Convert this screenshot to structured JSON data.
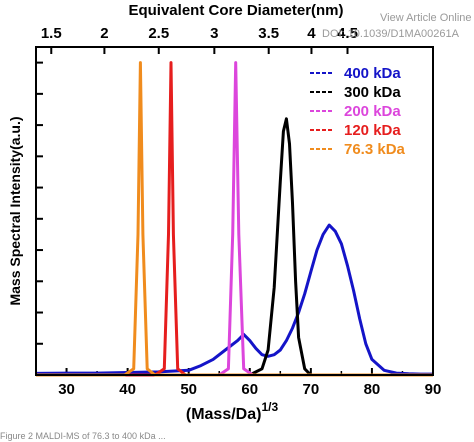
{
  "watermark": {
    "line1": "View Article Online",
    "line2": "DOI: 10.1039/D1MA00261A"
  },
  "caption_fragment": "Figure 2 MALDI-MS of 76.3 to 400 kDa ...",
  "chart_data": {
    "type": "line",
    "title": "",
    "xlabel": "(Mass/Da)",
    "xlabel_superscript": "1/3",
    "ylabel": "Mass Spectral Intensity(a.u.)",
    "top_axis_label": "Equivalent Core Diameter(nm)",
    "xlim": [
      25,
      90
    ],
    "ylim": [
      0,
      1.05
    ],
    "x_ticks": [
      30,
      40,
      50,
      60,
      70,
      80,
      90
    ],
    "x_tick_labels": [
      "30",
      "40",
      "50",
      "60",
      "70",
      "80",
      "90"
    ],
    "top_ticks": [
      {
        "label": "1.5",
        "x": 27.5
      },
      {
        "label": "2",
        "x": 36.2
      },
      {
        "label": "2.5",
        "x": 45.1
      },
      {
        "label": "3",
        "x": 54.2
      },
      {
        "label": "3.5",
        "x": 63.1
      },
      {
        "label": "4",
        "x": 70.1
      },
      {
        "label": "4.5",
        "x": 76.0
      }
    ],
    "legend_position": "top-right",
    "series": [
      {
        "name": "400 kDa",
        "color": "#1414c8",
        "x": [
          25,
          30,
          35,
          40,
          45,
          50,
          52,
          54,
          56,
          58,
          59,
          60,
          61,
          62,
          63,
          64,
          65,
          66,
          67,
          68,
          69,
          70,
          71,
          72,
          73,
          74,
          75,
          76,
          77,
          78,
          79,
          80,
          82,
          84,
          86,
          88,
          90
        ],
        "y": [
          0.005,
          0.006,
          0.006,
          0.008,
          0.01,
          0.015,
          0.03,
          0.05,
          0.08,
          0.11,
          0.13,
          0.11,
          0.085,
          0.065,
          0.06,
          0.065,
          0.08,
          0.11,
          0.15,
          0.2,
          0.26,
          0.33,
          0.4,
          0.45,
          0.48,
          0.46,
          0.42,
          0.35,
          0.27,
          0.18,
          0.1,
          0.05,
          0.015,
          0.006,
          0.004,
          0.003,
          0.003
        ]
      },
      {
        "name": "300 kDa",
        "color": "#000000",
        "x": [
          25,
          55,
          60,
          62,
          63,
          64,
          65,
          65.5,
          66,
          66.5,
          67,
          67.5,
          68,
          69,
          70,
          75,
          90
        ],
        "y": [
          0.0,
          0.0,
          0.0,
          0.02,
          0.08,
          0.28,
          0.62,
          0.78,
          0.82,
          0.74,
          0.55,
          0.3,
          0.12,
          0.02,
          0.0,
          0.0,
          0.0
        ]
      },
      {
        "name": "200 kDa",
        "color": "#dc46dc",
        "x": [
          25,
          55,
          56.5,
          57.2,
          57.7,
          58.2,
          59,
          60.5,
          90
        ],
        "y": [
          0.0,
          0.0,
          0.02,
          0.45,
          1.0,
          0.45,
          0.02,
          0.0,
          0.0
        ]
      },
      {
        "name": "120 kDa",
        "color": "#e61e1e",
        "x": [
          25,
          44.5,
          46,
          46.7,
          47.1,
          47.5,
          48.2,
          49.5,
          90
        ],
        "y": [
          0.0,
          0.0,
          0.02,
          0.45,
          1.0,
          0.45,
          0.02,
          0.0,
          0.0
        ]
      },
      {
        "name": "76.3 kDa",
        "color": "#f08c1e",
        "x": [
          25,
          39.5,
          41,
          41.7,
          42.1,
          42.5,
          43.2,
          44.5,
          90
        ],
        "y": [
          0.0,
          0.0,
          0.02,
          0.45,
          1.0,
          0.45,
          0.02,
          0.0,
          0.0
        ]
      }
    ]
  }
}
